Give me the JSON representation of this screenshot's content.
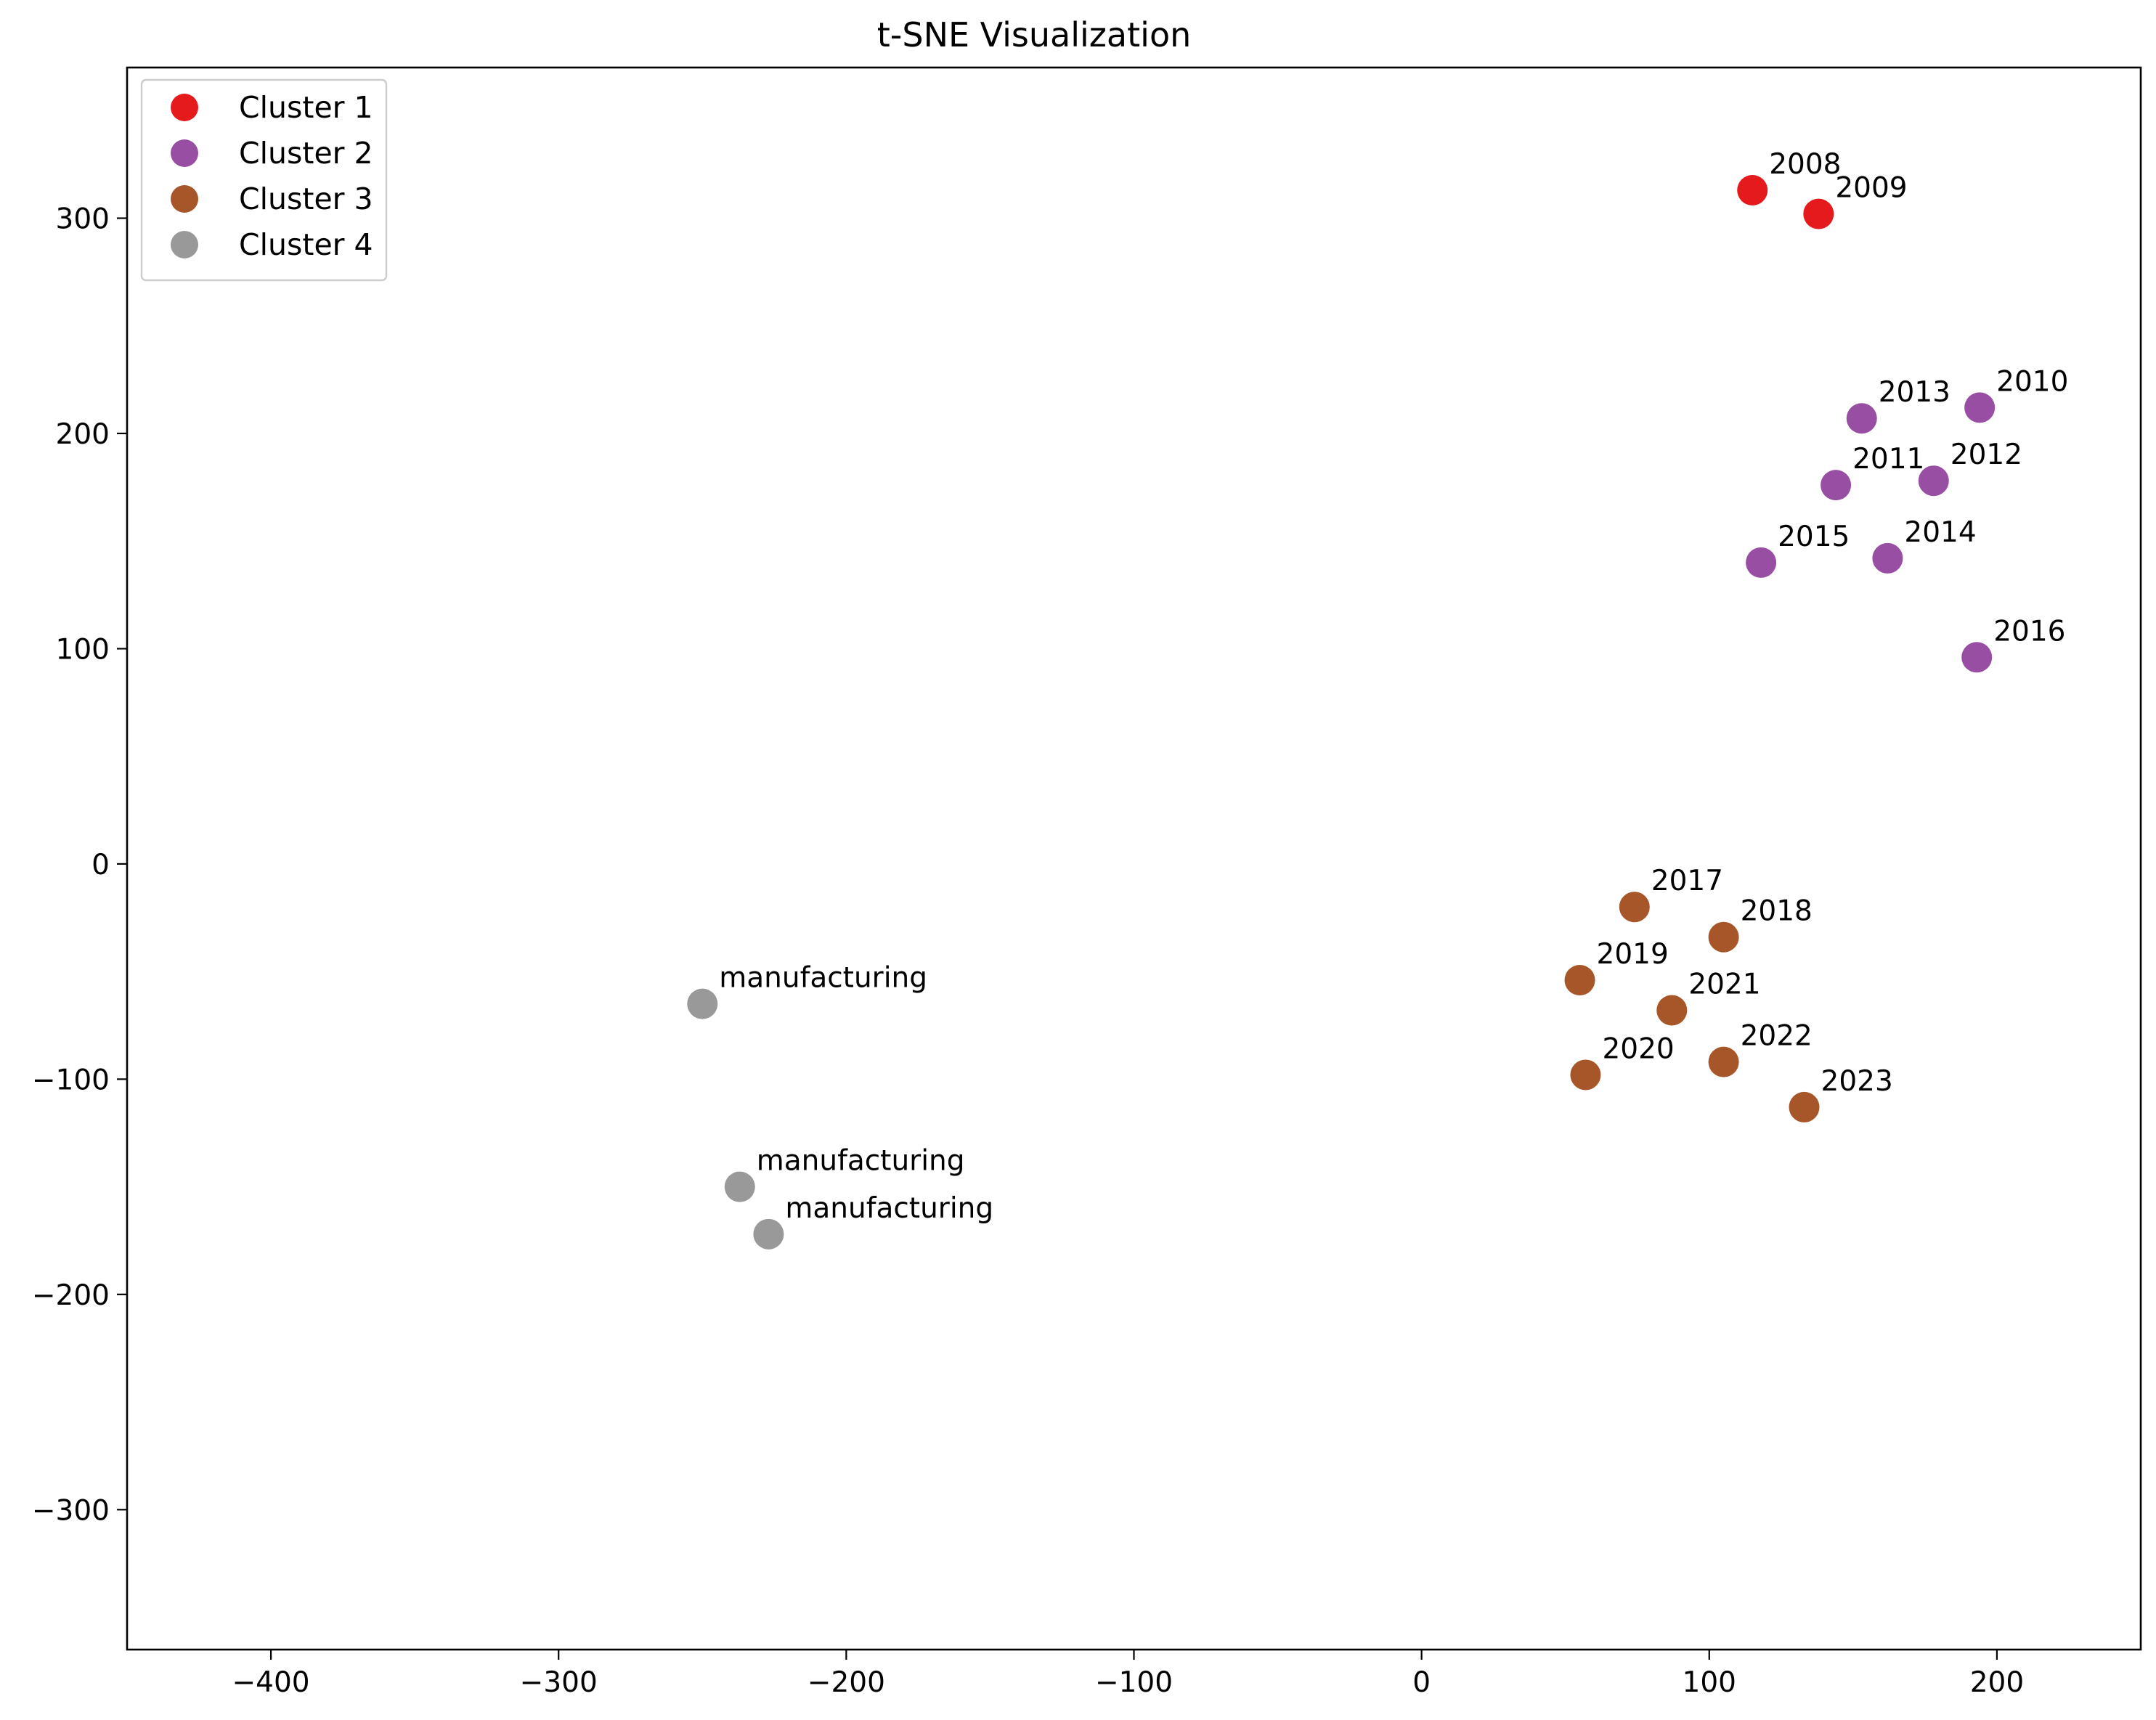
{
  "chart_data": {
    "type": "scatter",
    "title": "t-SNE Visualization",
    "xlabel": "",
    "ylabel": "",
    "xlim": [
      -450,
      250
    ],
    "ylim": [
      -365,
      370
    ],
    "xticks": [
      -400,
      -300,
      -200,
      -100,
      0,
      100,
      200
    ],
    "yticks": [
      -300,
      -200,
      -100,
      0,
      100,
      200,
      300
    ],
    "grid": false,
    "legend_position": "upper-left",
    "series": [
      {
        "name": "Cluster 1",
        "color": "#e41a1c",
        "points": [
          {
            "label": "2008",
            "x": 115,
            "y": 313
          },
          {
            "label": "2009",
            "x": 138,
            "y": 302
          }
        ]
      },
      {
        "name": "Cluster 2",
        "color": "#984ea3",
        "points": [
          {
            "label": "2013",
            "x": 153,
            "y": 207
          },
          {
            "label": "2010",
            "x": 194,
            "y": 212
          },
          {
            "label": "2011",
            "x": 144,
            "y": 176
          },
          {
            "label": "2012",
            "x": 178,
            "y": 178
          },
          {
            "label": "2015",
            "x": 118,
            "y": 140
          },
          {
            "label": "2014",
            "x": 162,
            "y": 142
          },
          {
            "label": "2016",
            "x": 193,
            "y": 96
          }
        ]
      },
      {
        "name": "Cluster 3",
        "color": "#a65628",
        "points": [
          {
            "label": "2017",
            "x": 74,
            "y": -20
          },
          {
            "label": "2018",
            "x": 105,
            "y": -34
          },
          {
            "label": "2019",
            "x": 55,
            "y": -54
          },
          {
            "label": "2021",
            "x": 87,
            "y": -68
          },
          {
            "label": "2020",
            "x": 57,
            "y": -98
          },
          {
            "label": "2022",
            "x": 105,
            "y": -92
          },
          {
            "label": "2023",
            "x": 133,
            "y": -113
          }
        ]
      },
      {
        "name": "Cluster 4",
        "color": "#999999",
        "points": [
          {
            "label": "manufacturing",
            "x": -250,
            "y": -65
          },
          {
            "label": "manufacturing",
            "x": -237,
            "y": -150
          },
          {
            "label": "manufacturing",
            "x": -227,
            "y": -172
          }
        ]
      }
    ]
  }
}
